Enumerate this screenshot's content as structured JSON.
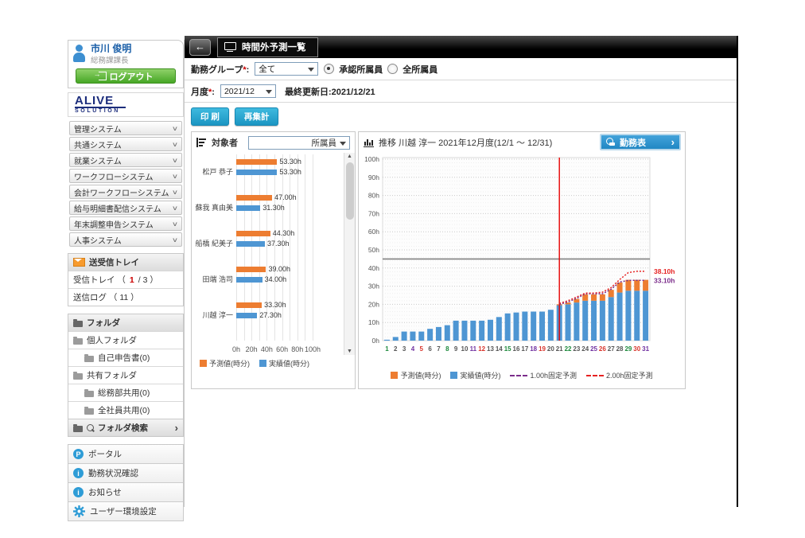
{
  "user": {
    "name": "市川 俊明",
    "role": "総務課課長",
    "logout": "ログアウト"
  },
  "logo": {
    "top": "ALIVE",
    "bottom": "SOLUTION"
  },
  "sidebar": {
    "menus": [
      "管理システム",
      "共通システム",
      "就業システム",
      "ワークフローシステム",
      "会計ワークフローシステム",
      "給与明細書配信システム",
      "年末調整申告システム",
      "人事システム"
    ],
    "tray": {
      "header": "送受信トレイ",
      "inbox_prefix": "受信トレイ （ ",
      "inbox_unread": "1",
      "inbox_suffix": " / 3 ）",
      "sendlog": "送信ログ （ 11 ）"
    },
    "folders": {
      "header": "フォルダ",
      "items": [
        {
          "label": "個人フォルダ",
          "level": 0
        },
        {
          "label": "自己申告書(0)",
          "level": 1
        },
        {
          "label": "共有フォルダ",
          "level": 0
        },
        {
          "label": "総務部共用(0)",
          "level": 1
        },
        {
          "label": "全社員共用(0)",
          "level": 1
        }
      ],
      "search": "フォルダ検索"
    },
    "links": [
      {
        "label": "ポータル",
        "icon": "portal-icon",
        "glyph": "P"
      },
      {
        "label": "勤務状況確認",
        "icon": "info-icon",
        "glyph": "i"
      },
      {
        "label": "お知らせ",
        "icon": "info-icon",
        "glyph": "i"
      },
      {
        "label": "ユーザー環境設定",
        "icon": "gear-icon",
        "glyph": ""
      }
    ]
  },
  "header": {
    "title": "時間外予測一覧"
  },
  "filters": {
    "group_label": "勤務グループ",
    "star": "*",
    "colon": ":",
    "group_value": "全て",
    "radios": [
      {
        "label": "承認所属員",
        "checked": true
      },
      {
        "label": "全所属員",
        "checked": false
      }
    ],
    "month_label": "月度",
    "month_value": "2021/12",
    "updated_label": "最終更新日:",
    "updated_value": "2021/12/21",
    "print_label": "印 刷",
    "recalc_label": "再集計"
  },
  "panels": {
    "people": {
      "title": "対象者",
      "filter_value": "所属員"
    },
    "trend": {
      "title": "推移 川越 淳一  2021年12月度(12/1 ～ 12/31)",
      "button": "勤務表"
    }
  },
  "colors": {
    "bar_actual": "#4e96d3",
    "bar_forecast": "#ed7d31",
    "fixed_1h": "#7b2d8b",
    "fixed_2h": "#e62222",
    "today_line": "#e60000",
    "threshold": "#808080",
    "day_default": "#555555",
    "day_green": "#1d8a3c",
    "day_purple": "#7030a0",
    "day_red": "#d9342b"
  },
  "chart_data": [
    {
      "type": "bar",
      "orientation": "horizontal",
      "title": "対象者",
      "categories": [
        "松戸 恭子",
        "蘇我 真由美",
        "船橋 紀美子",
        "田端 浩司",
        "川越 淳一"
      ],
      "series": [
        {
          "name": "予測値(時分)",
          "color": "#ed7d31",
          "values": [
            53.5,
            47.0,
            44.5,
            39.0,
            33.5
          ],
          "labels": [
            "53.30h",
            "47.00h",
            "44.30h",
            "39.00h",
            "33.30h"
          ]
        },
        {
          "name": "実績値(時分)",
          "color": "#4e96d3",
          "values": [
            53.5,
            31.5,
            37.5,
            34.0,
            27.5
          ],
          "labels": [
            "53.30h",
            "31.30h",
            "37.30h",
            "34.00h",
            "27.30h"
          ]
        }
      ],
      "xticks": [
        "0h",
        "20h",
        "40h",
        "60h",
        "80h",
        "100h"
      ],
      "xlim": [
        0,
        100
      ]
    },
    {
      "type": "bar",
      "subtype": "cumulative-overtime-trend",
      "title": "推移 川越 淳一  2021年12月度(12/1 ～ 12/31)",
      "days": 31,
      "yticks": [
        "0h",
        "10h",
        "20h",
        "30h",
        "40h",
        "50h",
        "60h",
        "70h",
        "80h",
        "90h",
        "100h"
      ],
      "ylim": [
        0,
        100
      ],
      "threshold": 45,
      "current_day": 21,
      "actual": [
        0.5,
        2,
        5,
        5,
        5,
        6.5,
        7.5,
        8.5,
        11,
        11,
        11,
        11,
        11.5,
        13,
        15,
        15.5,
        16,
        16,
        16,
        17,
        19.5,
        20,
        21,
        22,
        22,
        22,
        24,
        26.5,
        27.5,
        27.5,
        27.5
      ],
      "total": [
        0.5,
        2,
        5,
        5,
        5,
        6.5,
        7.5,
        8.5,
        11,
        11,
        11,
        11,
        11.5,
        13,
        15,
        15.5,
        16,
        16,
        16,
        17,
        20,
        21,
        23,
        25.5,
        25.5,
        25.5,
        28,
        32,
        33.5,
        33.5,
        33.5
      ],
      "fixed_lines": [
        {
          "name": "1.00h固定予測",
          "color": "#7b2d8b",
          "start_day": 21,
          "values": [
            20,
            21.3,
            23.3,
            25.8,
            25.8,
            25.8,
            28.3,
            32.3,
            33.2,
            33.2,
            33.2
          ],
          "end_label": "33.10h"
        },
        {
          "name": "2.00h固定予測",
          "color": "#e62222",
          "start_day": 21,
          "values": [
            20.5,
            22,
            24,
            26.2,
            26.2,
            26.7,
            29.2,
            33.7,
            37.5,
            38.2,
            38.2
          ],
          "end_label": "38.10h"
        }
      ],
      "day_colors": {
        "green": [
          1,
          8,
          15,
          22,
          29
        ],
        "purple": [
          4,
          11,
          18,
          25,
          31
        ],
        "red": [
          5,
          12,
          19,
          26,
          30
        ]
      },
      "legend": [
        {
          "label": "予測値(時分)",
          "color": "#ed7d31",
          "type": "box"
        },
        {
          "label": "実績値(時分)",
          "color": "#4e96d3",
          "type": "box"
        },
        {
          "label": "1.00h固定予測",
          "color": "#7b2d8b",
          "type": "dash"
        },
        {
          "label": "2.00h固定予測",
          "color": "#e62222",
          "type": "dash"
        }
      ]
    }
  ]
}
